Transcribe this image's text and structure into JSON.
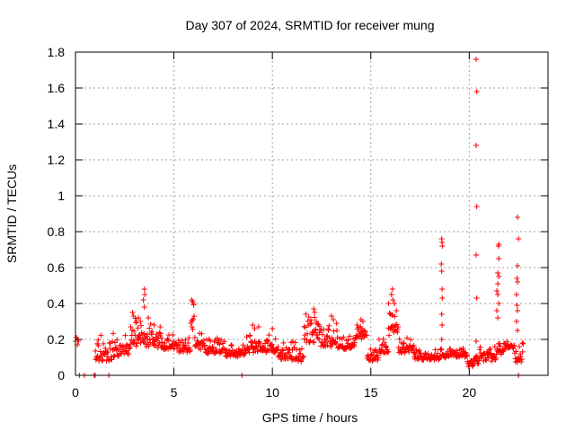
{
  "chart_data": {
    "type": "scatter",
    "title": "Day 307 of 2024, SRMTID for receiver mung",
    "xlabel": "GPS time / hours",
    "ylabel": "SRMTID / TECUs",
    "xlim": [
      0,
      24
    ],
    "ylim": [
      0,
      1.8
    ],
    "x_ticks": [
      0,
      5,
      10,
      15,
      20
    ],
    "y_ticks": [
      0,
      0.2,
      0.4,
      0.6,
      0.8,
      1,
      1.2,
      1.4,
      1.6,
      1.8
    ],
    "x_tick_labels": [
      "0",
      "5",
      "10",
      "15",
      "20"
    ],
    "y_tick_labels": [
      "0",
      "0.2",
      "0.4",
      "0.6",
      "0.8",
      "1",
      "1.2",
      "1.4",
      "1.6",
      "1.8"
    ],
    "grid": true,
    "marker": "+",
    "color": "#ff0000",
    "series": [
      {
        "name": "SRMTID",
        "points": [
          [
            0.0,
            0.19
          ],
          [
            0.05,
            0.21
          ],
          [
            0.1,
            0.17
          ],
          [
            0.12,
            0.2
          ],
          [
            0.15,
            0.19
          ],
          [
            0.2,
            0.0
          ],
          [
            0.45,
            0.0
          ],
          [
            0.95,
            0.0
          ],
          [
            1.0,
            0.0
          ],
          [
            1.7,
            0.0
          ],
          [
            8.45,
            0.0
          ],
          [
            22.5,
            0.0
          ],
          [
            18.6,
            0.76
          ],
          [
            18.62,
            0.74
          ],
          [
            18.63,
            0.72
          ],
          [
            18.58,
            0.62
          ],
          [
            18.6,
            0.58
          ],
          [
            18.62,
            0.48
          ],
          [
            18.63,
            0.43
          ],
          [
            18.6,
            0.34
          ],
          [
            18.62,
            0.28
          ],
          [
            18.6,
            0.2
          ],
          [
            20.35,
            1.76
          ],
          [
            20.38,
            1.58
          ],
          [
            20.35,
            1.28
          ],
          [
            20.38,
            0.94
          ],
          [
            20.35,
            0.67
          ],
          [
            20.38,
            0.43
          ],
          [
            20.35,
            0.19
          ],
          [
            21.5,
            0.73
          ],
          [
            21.48,
            0.72
          ],
          [
            21.5,
            0.65
          ],
          [
            21.45,
            0.57
          ],
          [
            21.5,
            0.55
          ],
          [
            21.45,
            0.51
          ],
          [
            21.4,
            0.47
          ],
          [
            21.45,
            0.45
          ],
          [
            21.5,
            0.4
          ],
          [
            21.4,
            0.36
          ],
          [
            21.45,
            0.32
          ],
          [
            22.45,
            0.88
          ],
          [
            22.5,
            0.76
          ],
          [
            22.45,
            0.61
          ],
          [
            22.42,
            0.54
          ],
          [
            22.45,
            0.52
          ],
          [
            22.4,
            0.45
          ],
          [
            22.42,
            0.39
          ],
          [
            22.45,
            0.36
          ],
          [
            22.4,
            0.3
          ],
          [
            22.45,
            0.25
          ],
          [
            3.5,
            0.48
          ],
          [
            3.52,
            0.45
          ],
          [
            3.45,
            0.42
          ],
          [
            3.5,
            0.38
          ],
          [
            16.1,
            0.48
          ],
          [
            16.05,
            0.45
          ],
          [
            16.12,
            0.42
          ],
          [
            12.1,
            0.37
          ],
          [
            12.15,
            0.35
          ],
          [
            5.9,
            0.42
          ],
          [
            5.95,
            0.41
          ],
          [
            6.0,
            0.4
          ],
          [
            2.9,
            0.35
          ],
          [
            2.95,
            0.33
          ],
          [
            3.1,
            0.3
          ],
          [
            3.2,
            0.32
          ],
          [
            3.3,
            0.3
          ],
          [
            3.7,
            0.32
          ],
          [
            4.0,
            0.28
          ],
          [
            4.3,
            0.27
          ],
          [
            9.0,
            0.28
          ],
          [
            9.1,
            0.26
          ],
          [
            9.3,
            0.27
          ],
          [
            10.0,
            0.26
          ],
          [
            13.0,
            0.33
          ],
          [
            13.1,
            0.31
          ],
          [
            14.5,
            0.31
          ],
          [
            14.6,
            0.3
          ],
          [
            14.3,
            0.28
          ],
          [
            15.9,
            0.4
          ],
          [
            16.2,
            0.4
          ],
          [
            16.3,
            0.36
          ]
        ],
        "segments": [
          {
            "x": [
              1.0,
              2.0
            ],
            "y": [
              0.04,
              0.25
            ]
          },
          {
            "x": [
              2.0,
              2.8
            ],
            "y": [
              0.08,
              0.24
            ]
          },
          {
            "x": [
              2.8,
              3.3
            ],
            "y": [
              0.12,
              0.36
            ]
          },
          {
            "x": [
              3.3,
              4.0
            ],
            "y": [
              0.13,
              0.32
            ]
          },
          {
            "x": [
              4.0,
              5.2
            ],
            "y": [
              0.12,
              0.26
            ]
          },
          {
            "x": [
              5.2,
              5.85
            ],
            "y": [
              0.1,
              0.24
            ]
          },
          {
            "x": [
              5.85,
              6.05
            ],
            "y": [
              0.2,
              0.43
            ]
          },
          {
            "x": [
              6.05,
              6.6
            ],
            "y": [
              0.12,
              0.26
            ]
          },
          {
            "x": [
              6.6,
              7.6
            ],
            "y": [
              0.1,
              0.22
            ]
          },
          {
            "x": [
              7.6,
              8.6
            ],
            "y": [
              0.08,
              0.2
            ]
          },
          {
            "x": [
              8.6,
              9.4
            ],
            "y": [
              0.09,
              0.28
            ]
          },
          {
            "x": [
              9.4,
              10.3
            ],
            "y": [
              0.1,
              0.24
            ]
          },
          {
            "x": [
              10.3,
              11.6
            ],
            "y": [
              0.05,
              0.2
            ]
          },
          {
            "x": [
              11.6,
              12.4
            ],
            "y": [
              0.14,
              0.35
            ]
          },
          {
            "x": [
              12.4,
              13.3
            ],
            "y": [
              0.12,
              0.31
            ]
          },
          {
            "x": [
              13.3,
              14.2
            ],
            "y": [
              0.12,
              0.24
            ]
          },
          {
            "x": [
              14.2,
              14.8
            ],
            "y": [
              0.18,
              0.31
            ]
          },
          {
            "x": [
              14.8,
              15.4
            ],
            "y": [
              0.06,
              0.17
            ]
          },
          {
            "x": [
              15.4,
              15.9
            ],
            "y": [
              0.1,
              0.22
            ]
          },
          {
            "x": [
              15.9,
              16.4
            ],
            "y": [
              0.18,
              0.42
            ]
          },
          {
            "x": [
              16.4,
              17.2
            ],
            "y": [
              0.1,
              0.22
            ]
          },
          {
            "x": [
              17.2,
              18.5
            ],
            "y": [
              0.07,
              0.15
            ]
          },
          {
            "x": [
              18.5,
              19.9
            ],
            "y": [
              0.08,
              0.17
            ]
          },
          {
            "x": [
              19.9,
              20.5
            ],
            "y": [
              0.03,
              0.12
            ]
          },
          {
            "x": [
              20.5,
              21.4
            ],
            "y": [
              0.06,
              0.17
            ]
          },
          {
            "x": [
              21.4,
              21.8
            ],
            "y": [
              0.1,
              0.2
            ]
          },
          {
            "x": [
              21.8,
              22.3
            ],
            "y": [
              0.14,
              0.2
            ]
          },
          {
            "x": [
              22.3,
              22.75
            ],
            "y": [
              0.05,
              0.18
            ]
          }
        ]
      }
    ]
  }
}
